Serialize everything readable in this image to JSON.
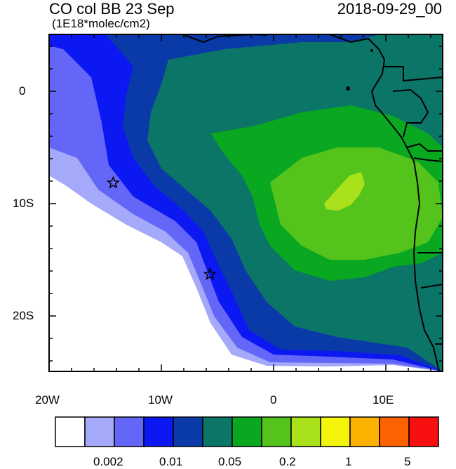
{
  "header": {
    "title_left": "CO col BB 23 Sep",
    "title_right": "2018-09-29_00",
    "units": "(1E18*molec/cm2)"
  },
  "map": {
    "region": "West Africa / South-East Atlantic",
    "x_ticks": [
      "20W",
      "10W",
      "0",
      "10E"
    ],
    "y_ticks": [
      "0",
      "10S",
      "20S"
    ],
    "lon_range": [
      -20,
      15
    ],
    "lat_range": [
      -24.5,
      5
    ],
    "markers": [
      {
        "name": "star-marker",
        "lon": -14.3,
        "lat": -8.0
      },
      {
        "name": "star-marker",
        "lon": -5.7,
        "lat": -16.0
      }
    ],
    "background": "#ffffff"
  },
  "colorbar": {
    "colors": [
      "#ffffff",
      "#a5a9f9",
      "#6366f6",
      "#0b18f2",
      "#0a3aa8",
      "#0b7567",
      "#0aa720",
      "#54c41c",
      "#a9e21a",
      "#f4f40a",
      "#fcb000",
      "#fc6300",
      "#f80f0f"
    ],
    "labels": [
      "0.002",
      "0.01",
      "0.05",
      "0.2",
      "1",
      "5"
    ]
  }
}
